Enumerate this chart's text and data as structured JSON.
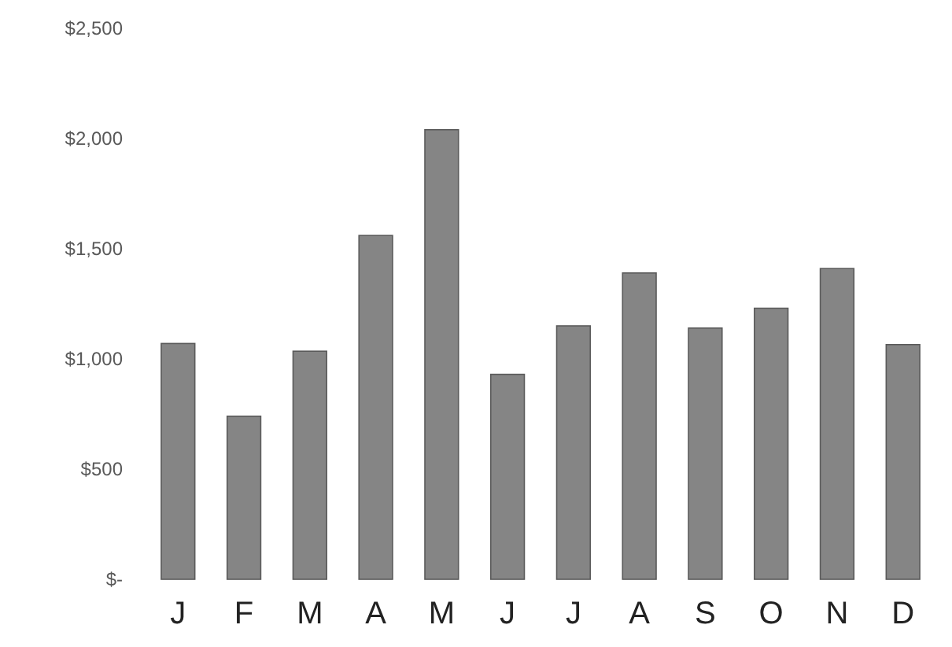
{
  "chart_data": {
    "type": "bar",
    "categories": [
      "J",
      "F",
      "M",
      "A",
      "M",
      "J",
      "J",
      "A",
      "S",
      "O",
      "N",
      "D"
    ],
    "values": [
      1070,
      740,
      1035,
      1560,
      2040,
      930,
      1150,
      1390,
      1140,
      1230,
      1410,
      1065
    ],
    "color": "#858585",
    "ylim": [
      0,
      2500
    ],
    "yticks": [
      {
        "value": 0,
        "label": "$-"
      },
      {
        "value": 500,
        "label": "$500"
      },
      {
        "value": 1000,
        "label": "$1,000"
      },
      {
        "value": 1500,
        "label": "$1,500"
      },
      {
        "value": 2000,
        "label": "$2,000"
      },
      {
        "value": 2500,
        "label": "$2,500"
      }
    ],
    "grid": false
  }
}
